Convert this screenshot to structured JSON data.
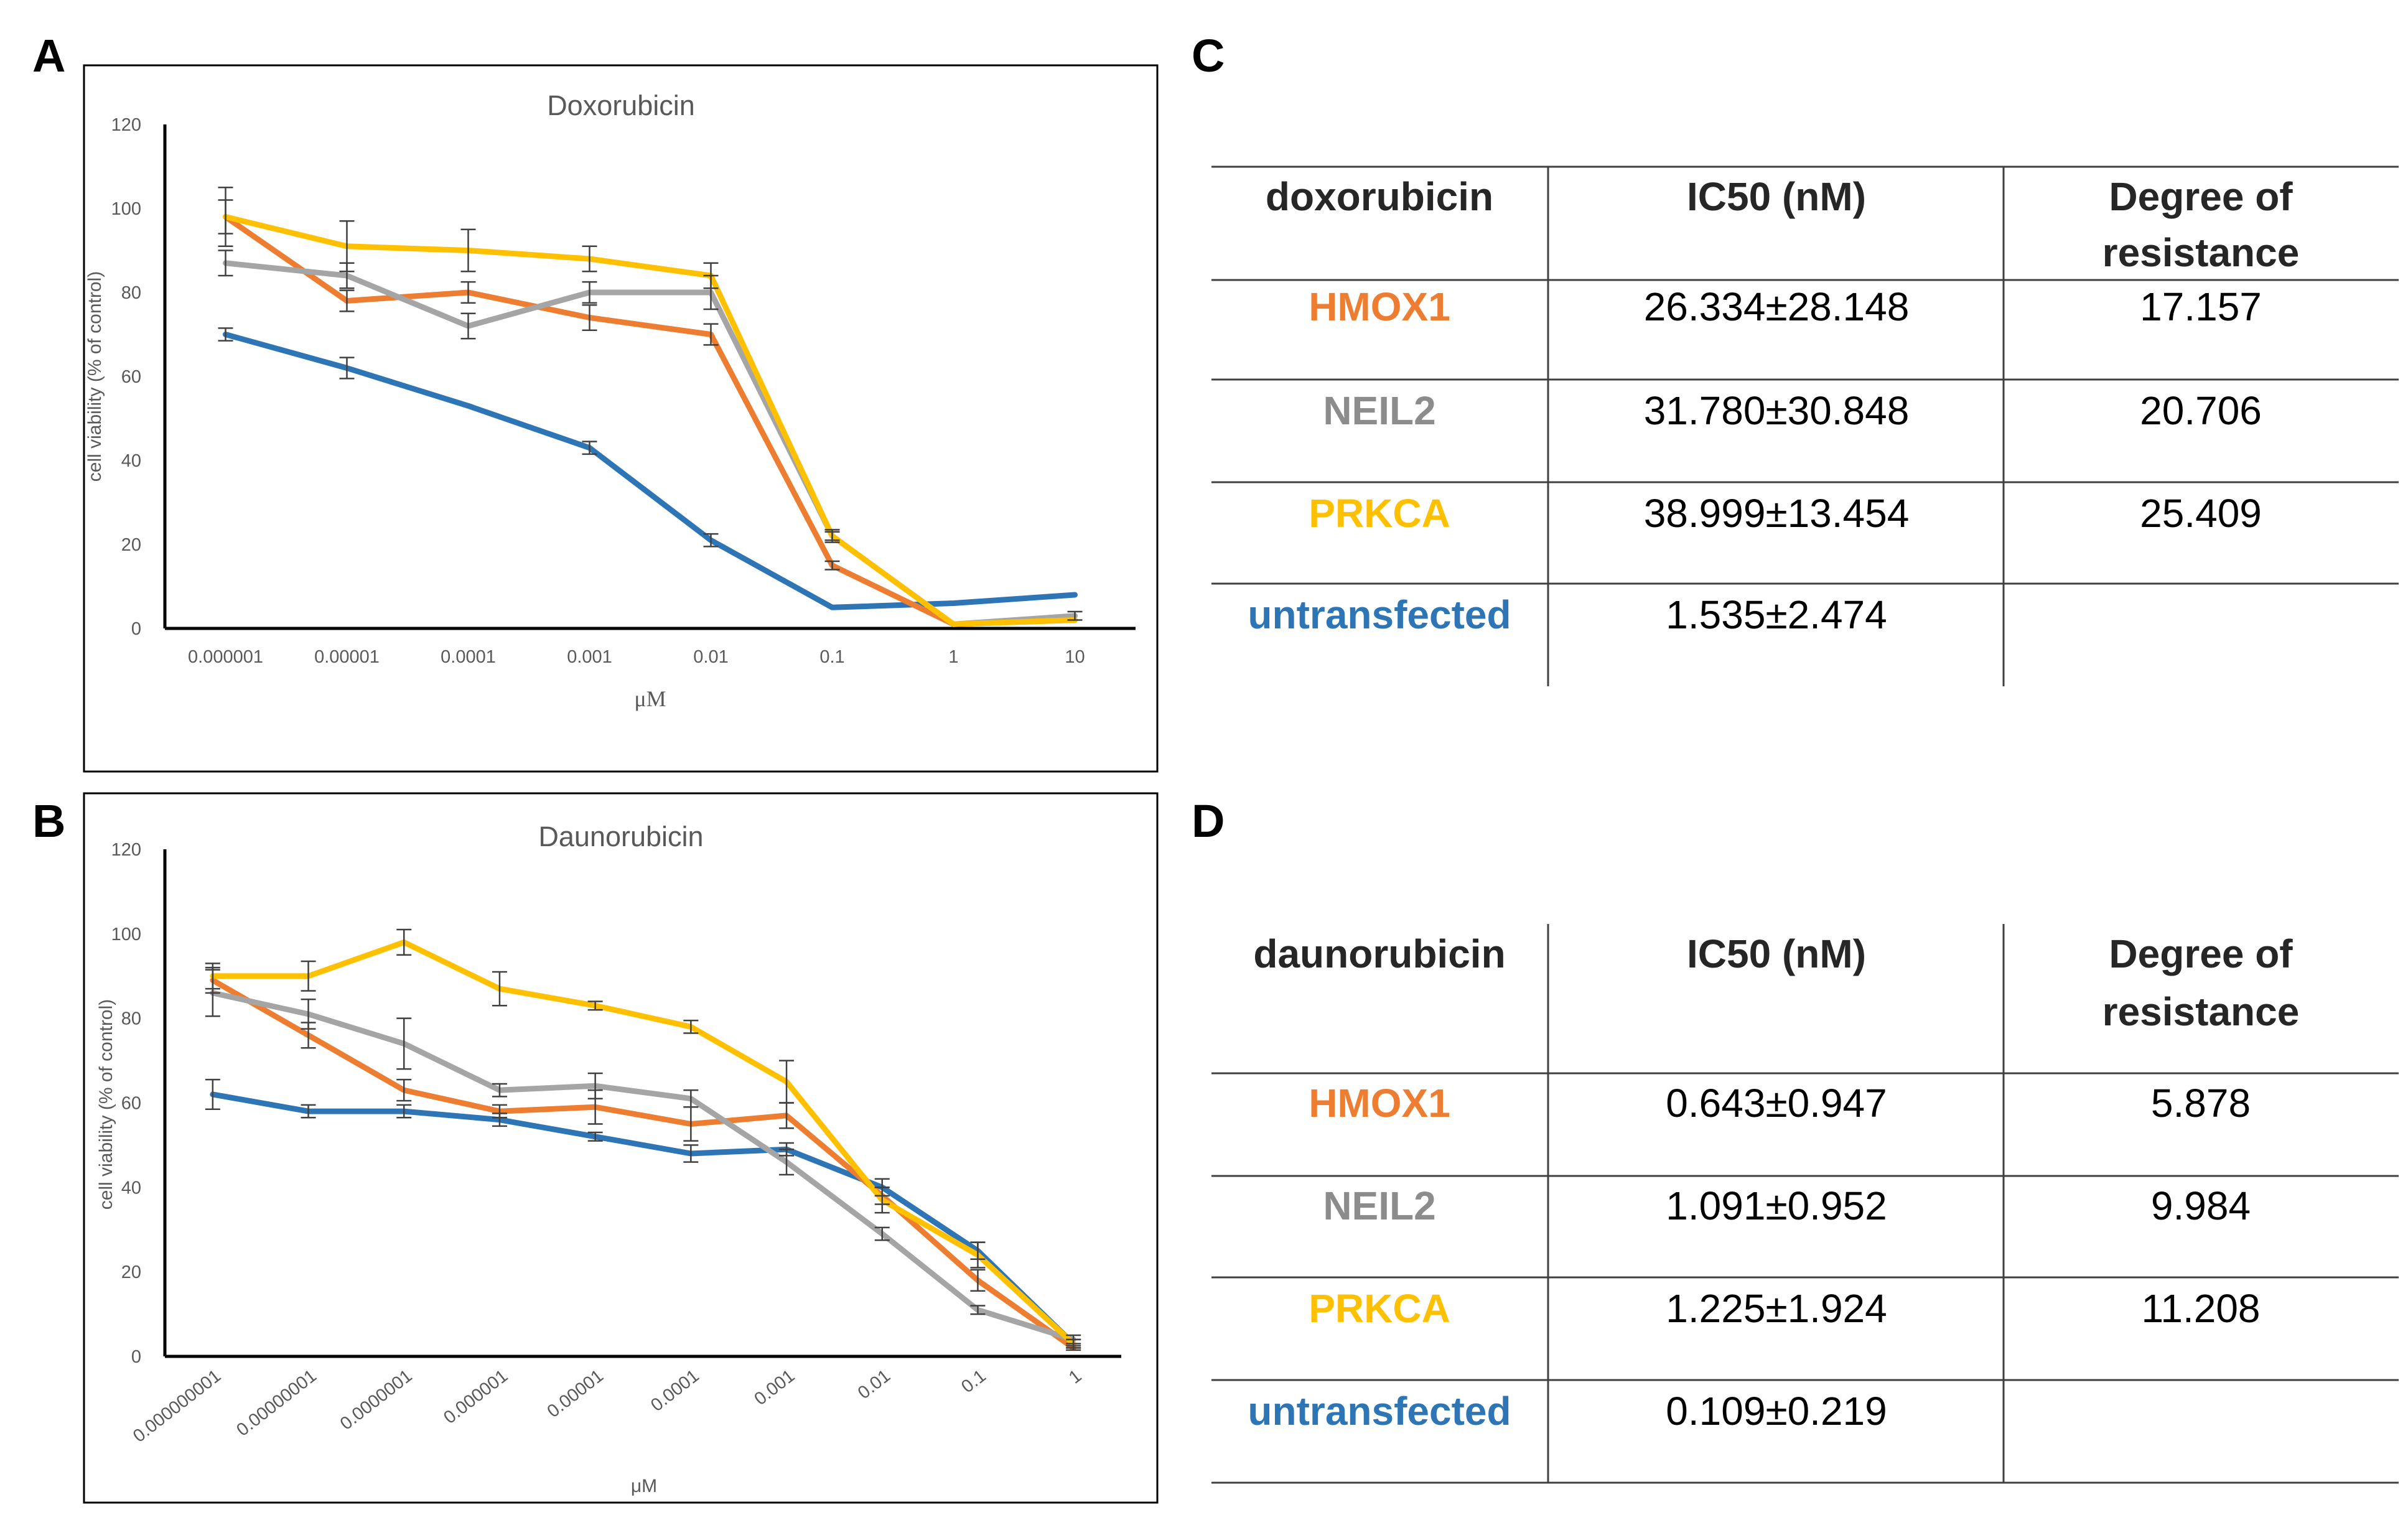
{
  "panels": {
    "a": "A",
    "b": "B",
    "c": "C",
    "d": "D"
  },
  "colors": {
    "HMOX1": "#ED7D31",
    "NEIL2": "#A5A5A5",
    "PRKCA": "#FFC000",
    "untransfected": "#2E75B6",
    "axis": "#000000",
    "text": "#595959"
  },
  "chart_data": [
    {
      "type": "line",
      "title": "Doxorubicin",
      "xlabel": "μM",
      "ylabel": "cell viability (% of control)",
      "ylim": [
        0,
        120
      ],
      "yticks": [
        "0",
        "20",
        "40",
        "60",
        "80",
        "100",
        "120"
      ],
      "categories": [
        "0.000001",
        "0.00001",
        "0.0001",
        "0.001",
        "0.01",
        "0.1",
        "1",
        "10"
      ],
      "series": [
        {
          "name": "untransfected",
          "values": [
            70,
            62,
            53,
            43,
            21,
            5,
            6,
            8
          ],
          "errors": [
            1.5,
            2.5,
            0,
            1.5,
            1.5,
            0,
            0,
            0
          ]
        },
        {
          "name": "HMOX1",
          "values": [
            98,
            78,
            80,
            74,
            70,
            15,
            1,
            2
          ],
          "errors": [
            4,
            2.5,
            2.5,
            3,
            2.5,
            1,
            0,
            0
          ]
        },
        {
          "name": "NEIL2",
          "values": [
            87,
            84,
            72,
            80,
            80,
            22,
            1,
            3
          ],
          "errors": [
            3,
            3,
            3,
            2.5,
            4,
            1.5,
            0,
            1
          ]
        },
        {
          "name": "PRKCA",
          "values": [
            98,
            91,
            90,
            88,
            84,
            22,
            1,
            2
          ],
          "errors": [
            7,
            6,
            5,
            3,
            3,
            1,
            0,
            0
          ]
        }
      ]
    },
    {
      "type": "line",
      "title": "Daunorubicin",
      "xlabel": "μM",
      "ylabel": "cell viability  (% of control)",
      "ylim": [
        0,
        120
      ],
      "yticks": [
        "0",
        "20",
        "40",
        "60",
        "80",
        "100",
        "120"
      ],
      "categories": [
        "0.000000001",
        "0.00000001",
        "0.0000001",
        "0.000001",
        "0.00001",
        "0.0001",
        "0.001",
        "0.01",
        "0.1",
        "1"
      ],
      "series": [
        {
          "name": "untransfected",
          "values": [
            62,
            58,
            58,
            56,
            52,
            48,
            49,
            40,
            25,
            3
          ],
          "errors": [
            3.5,
            1.5,
            1.5,
            1.5,
            1,
            2,
            1.5,
            2,
            2,
            1
          ]
        },
        {
          "name": "HMOX1",
          "values": [
            89,
            76,
            63,
            58,
            59,
            55,
            57,
            38,
            18,
            2
          ],
          "errors": [
            3,
            3,
            2.5,
            1.5,
            4,
            4,
            3,
            2,
            2.5,
            0.5
          ]
        },
        {
          "name": "NEIL2",
          "values": [
            86,
            81,
            74,
            63,
            64,
            61,
            46,
            29,
            11,
            4
          ],
          "errors": [
            5.5,
            3.5,
            6,
            1.5,
            3,
            2,
            3,
            1.5,
            1,
            1
          ]
        },
        {
          "name": "PRKCA",
          "values": [
            90,
            90,
            98,
            87,
            83,
            78,
            65,
            37,
            24,
            3
          ],
          "errors": [
            3,
            3.5,
            3,
            4,
            1,
            1.5,
            5,
            3,
            3,
            1
          ]
        }
      ]
    }
  ],
  "tables": [
    {
      "header": [
        "doxorubicin",
        "IC50 (nM)",
        "Degree of",
        "resistance"
      ],
      "rows": [
        {
          "name": "HMOX1",
          "ic50": "26.334±28.148",
          "degree": "17.157"
        },
        {
          "name": "NEIL2",
          "ic50": "31.780±30.848",
          "degree": "20.706"
        },
        {
          "name": "PRKCA",
          "ic50": "38.999±13.454",
          "degree": "25.409"
        },
        {
          "name": "untransfected",
          "ic50": "1.535±2.474",
          "degree": ""
        }
      ]
    },
    {
      "header": [
        "daunorubicin",
        "IC50 (nM)",
        "Degree of",
        "resistance"
      ],
      "rows": [
        {
          "name": "HMOX1",
          "ic50": "0.643±0.947",
          "degree": "5.878"
        },
        {
          "name": "NEIL2",
          "ic50": "1.091±0.952",
          "degree": "9.984"
        },
        {
          "name": "PRKCA",
          "ic50": "1.225±1.924",
          "degree": "11.208"
        },
        {
          "name": "untransfected",
          "ic50": "0.109±0.219",
          "degree": ""
        }
      ]
    }
  ]
}
